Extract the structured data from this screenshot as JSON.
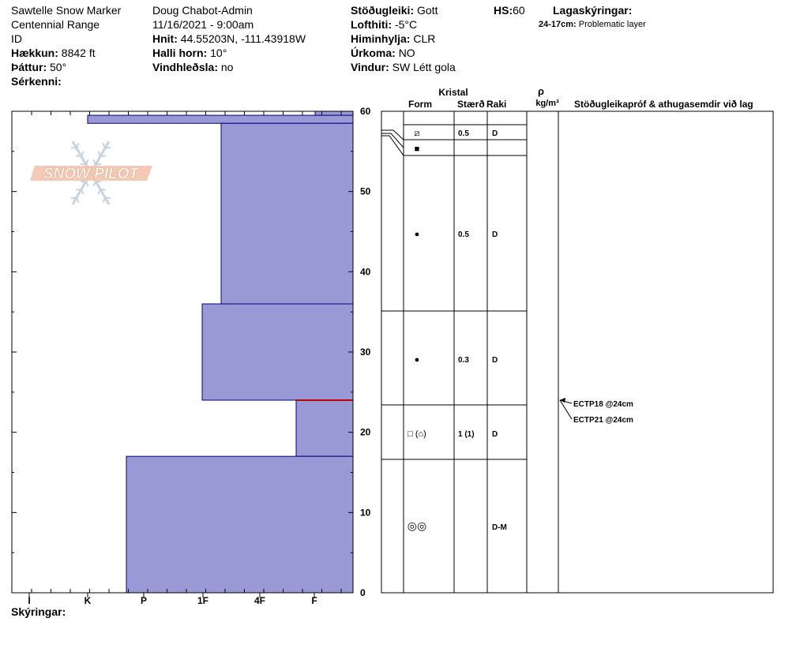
{
  "header": {
    "col1": {
      "location": "Sawtelle Snow Marker",
      "range": "Centennial Range",
      "state": "ID",
      "elevation_label": "Hækkun:",
      "elevation_value": "8842 ft",
      "aspect_label": "Þáttur:",
      "aspect_value": "50°",
      "features_label": "Sérkenni:"
    },
    "col2": {
      "observer": "Doug Chabot-Admin",
      "datetime": "11/16/2021 - 9:00am",
      "coords_label": "Hnit:",
      "coords_value": "44.55203N, -111.43918W",
      "slope_label": "Halli horn:",
      "slope_value": "10°",
      "wind_loading_label": "Vindhleðsla:",
      "wind_loading_value": "no"
    },
    "col3": {
      "stability_label": "Stöðugleiki:",
      "stability_value": "Gott",
      "air_temp_label": "Lofthiti:",
      "air_temp_value": "-5°C",
      "sky_label": "Himinhylja:",
      "sky_value": "CLR",
      "precip_label": "Úrkoma:",
      "precip_value": "NO",
      "wind_label": "Vindur:",
      "wind_value": "SW  Létt gola"
    },
    "hs_label": "HS:",
    "hs_value": "60",
    "layer_notes_label": "Lagaskýringar:",
    "layer_note_depth": "24-17cm:",
    "layer_note_text": "Problematic layer"
  },
  "logo": {
    "text": "SNOW PILOT"
  },
  "footer": {
    "notes_label": "Skýringar:"
  },
  "table_headers": {
    "crystal": "Kristal",
    "form": "Form",
    "size": "Stærð",
    "moisture": "Raki",
    "density_symbol": "ρ",
    "density_unit": "kg/m³",
    "tests": "Stöðugleikapróf & athugasemdir við lag"
  },
  "colors": {
    "layer_fill": "#9999d6",
    "layer_stroke": "#000080",
    "weak_layer": "#c00000"
  },
  "chart_data": {
    "type": "bar",
    "description_axis": "hardness vs depth",
    "hardness_ticks": [
      "I",
      "K",
      "P",
      "1F",
      "4F",
      "F"
    ],
    "height_ticks": [
      0,
      10,
      20,
      30,
      40,
      50,
      60
    ],
    "ylim": [
      0,
      60
    ],
    "layers": [
      {
        "top": 60,
        "bottom": 59.5,
        "hardness": 6.2,
        "form": "",
        "size": "",
        "moisture": ""
      },
      {
        "top": 59.5,
        "bottom": 58.5,
        "hardness": 1.25,
        "form": "⧄",
        "size": "0.5",
        "moisture": "D"
      },
      {
        "top": 58.5,
        "bottom": 36,
        "hardness": 4.25,
        "form": "■",
        "size": "",
        "moisture": ""
      },
      {
        "top": 58.5,
        "bottom": 36,
        "hardness": 4.25,
        "form": "●",
        "size": "0.5",
        "moisture": "D"
      },
      {
        "top": 36,
        "bottom": 24,
        "hardness": 4.0,
        "form": "●",
        "size": "0.3",
        "moisture": "D"
      },
      {
        "top": 24,
        "bottom": 17,
        "hardness": 5.2,
        "form": "□ (⌂)",
        "size": "1 (1)",
        "moisture": "D"
      },
      {
        "top": 17,
        "bottom": 0,
        "hardness": 3.2,
        "form": "◎◎",
        "size": "",
        "moisture": "D-M"
      }
    ],
    "weak_layer_depth": 24,
    "tests": [
      {
        "label": "ECTP18 @24cm",
        "depth": 24
      },
      {
        "label": "ECTP21 @24cm",
        "depth": 24
      }
    ]
  }
}
